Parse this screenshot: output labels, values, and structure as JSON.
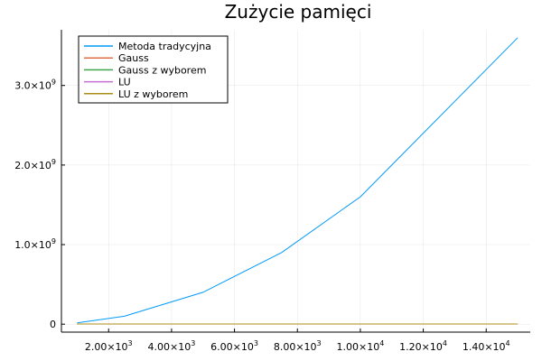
{
  "chart_data": {
    "type": "line",
    "title": "Zużycie pamięci",
    "xlabel": "",
    "ylabel": "",
    "xlim": [
      500,
      15400
    ],
    "ylim": [
      -100000000,
      3700000000
    ],
    "grid": true,
    "legend_position": "top-left",
    "x_ticks": [
      {
        "value": 2000,
        "mantissa": "2.00×10",
        "exp": "3"
      },
      {
        "value": 4000,
        "mantissa": "4.00×10",
        "exp": "3"
      },
      {
        "value": 6000,
        "mantissa": "6.00×10",
        "exp": "3"
      },
      {
        "value": 8000,
        "mantissa": "8.00×10",
        "exp": "3"
      },
      {
        "value": 10000,
        "mantissa": "1.00×10",
        "exp": "4"
      },
      {
        "value": 12000,
        "mantissa": "1.20×10",
        "exp": "4"
      },
      {
        "value": 14000,
        "mantissa": "1.40×10",
        "exp": "4"
      }
    ],
    "y_ticks": [
      {
        "value": 0,
        "mantissa": "0",
        "exp": ""
      },
      {
        "value": 1000000000,
        "mantissa": "1.0×10",
        "exp": "9"
      },
      {
        "value": 2000000000,
        "mantissa": "2.0×10",
        "exp": "9"
      },
      {
        "value": 3000000000,
        "mantissa": "3.0×10",
        "exp": "9"
      }
    ],
    "series": [
      {
        "name": "Metoda tradycyjna",
        "color": "#009af9",
        "points": [
          [
            1000,
            16000000
          ],
          [
            2500,
            100000000
          ],
          [
            5000,
            400000000
          ],
          [
            7500,
            900000000
          ],
          [
            10000,
            1600000000
          ],
          [
            15000,
            3600000000
          ]
        ]
      },
      {
        "name": "Gauss",
        "color": "#e26f46",
        "points": [
          [
            1000,
            2000000
          ],
          [
            2500,
            2000000
          ],
          [
            5000,
            2000000
          ],
          [
            7500,
            2000000
          ],
          [
            10000,
            2000000
          ],
          [
            15000,
            2000000
          ]
        ]
      },
      {
        "name": "Gauss z wyborem",
        "color": "#3da44d",
        "points": [
          [
            1000,
            2000000
          ],
          [
            2500,
            2000000
          ],
          [
            5000,
            2000000
          ],
          [
            7500,
            2000000
          ],
          [
            10000,
            2000000
          ],
          [
            15000,
            2000000
          ]
        ]
      },
      {
        "name": "LU",
        "color": "#c271d2",
        "points": [
          [
            1000,
            2000000
          ],
          [
            2500,
            2000000
          ],
          [
            5000,
            2000000
          ],
          [
            7500,
            2000000
          ],
          [
            10000,
            2000000
          ],
          [
            15000,
            2000000
          ]
        ]
      },
      {
        "name": "LU z wyborem",
        "color": "#ac8d18",
        "points": [
          [
            1000,
            2000000
          ],
          [
            2500,
            2000000
          ],
          [
            5000,
            2000000
          ],
          [
            7500,
            2000000
          ],
          [
            10000,
            2000000
          ],
          [
            15000,
            2000000
          ]
        ]
      }
    ]
  }
}
